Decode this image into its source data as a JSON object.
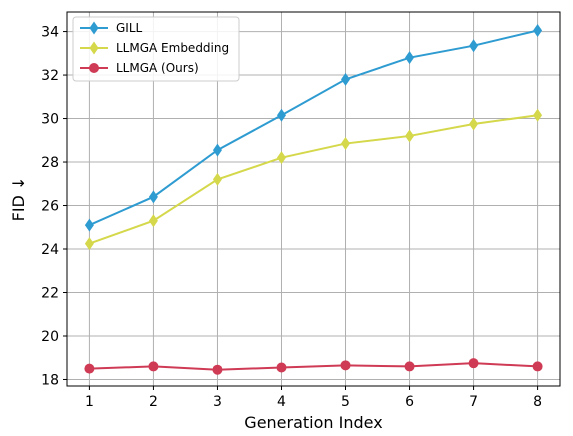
{
  "chart_data": {
    "type": "line",
    "xlabel": "Generation Index",
    "ylabel": "FID ↓",
    "x": [
      1,
      2,
      3,
      4,
      5,
      6,
      7,
      8
    ],
    "xlim": [
      0.65,
      8.35
    ],
    "ylim": [
      17.7,
      34.9
    ],
    "yticks": [
      18,
      20,
      22,
      24,
      26,
      28,
      30,
      32,
      34
    ],
    "grid": true,
    "legend_position": "top-left",
    "series": [
      {
        "name": "GILL",
        "color": "#2e9bd1",
        "marker": "diamond",
        "values": [
          25.1,
          26.4,
          28.55,
          30.15,
          31.8,
          32.8,
          33.35,
          34.05
        ]
      },
      {
        "name": "LLMGA Embedding",
        "color": "#d4d84a",
        "marker": "diamond",
        "values": [
          24.25,
          25.3,
          27.2,
          28.2,
          28.85,
          29.2,
          29.75,
          30.15
        ]
      },
      {
        "name": "LLMGA (Ours)",
        "color": "#cf3a54",
        "marker": "circle",
        "values": [
          18.5,
          18.6,
          18.45,
          18.55,
          18.65,
          18.6,
          18.75,
          18.6
        ]
      }
    ]
  }
}
